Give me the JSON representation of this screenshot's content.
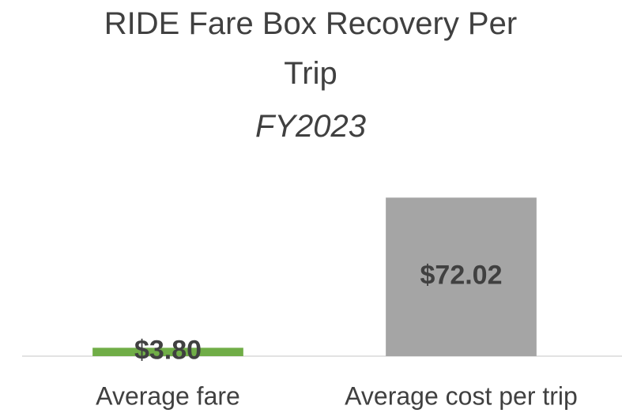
{
  "chart_data": {
    "type": "bar",
    "title": "RIDE Fare Box Recovery Per Trip",
    "subtitle": "FY2023",
    "categories": [
      "Average fare",
      "Average cost per trip"
    ],
    "values": [
      3.8,
      72.02
    ],
    "value_labels": [
      "$3.80",
      "$72.02"
    ],
    "colors": [
      "#70ad47",
      "#a5a5a5"
    ],
    "ylim": [
      0,
      80
    ],
    "grid": false
  }
}
